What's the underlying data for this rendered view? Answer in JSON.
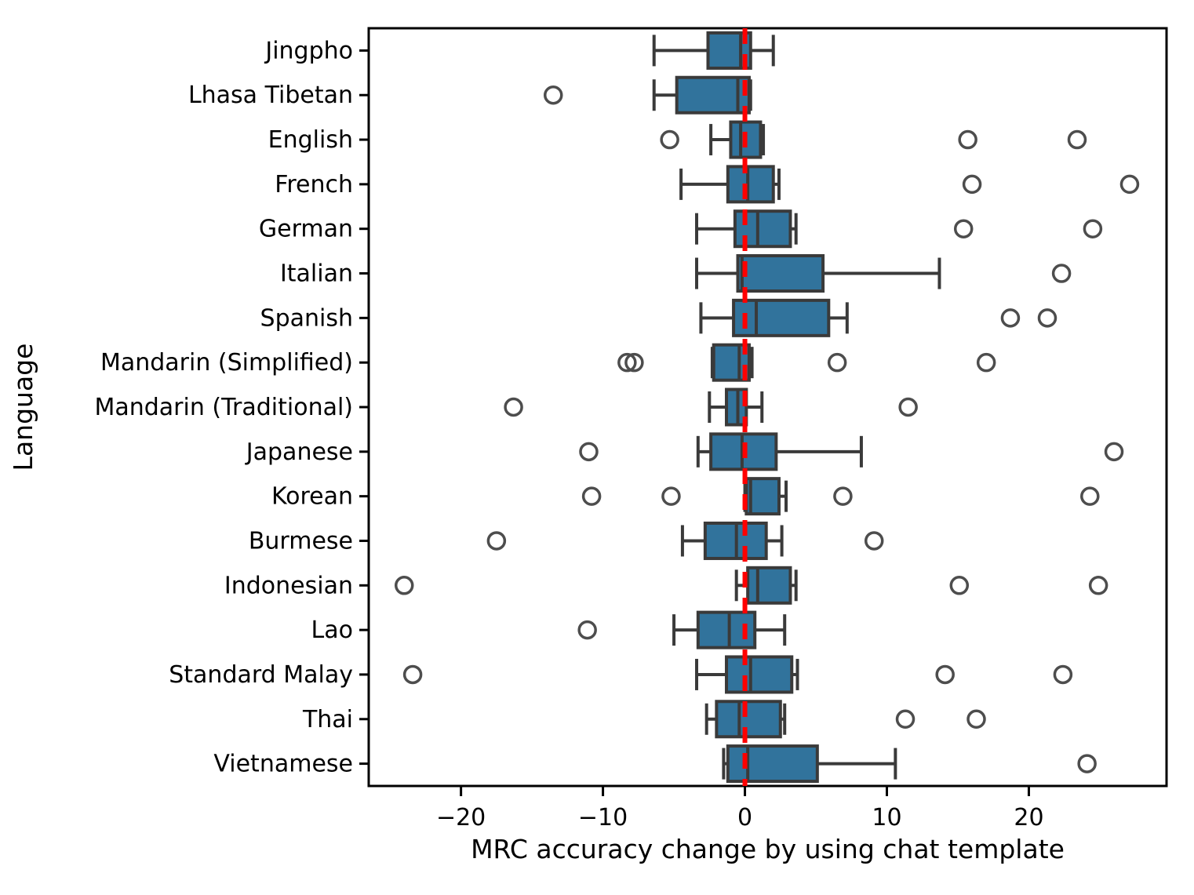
{
  "chart_data": {
    "type": "boxplot-horizontal",
    "title": "",
    "xlabel": "MRC accuracy change by using chat template",
    "ylabel": "Language",
    "xlim": [
      -26.5,
      29.7
    ],
    "x_ticks": [
      {
        "value": -20,
        "label": "−20"
      },
      {
        "value": -10,
        "label": "−10"
      },
      {
        "value": 0,
        "label": "0"
      },
      {
        "value": 10,
        "label": "10"
      },
      {
        "value": 20,
        "label": "20"
      }
    ],
    "zero_line_x": 0,
    "grid": false,
    "legend": null,
    "colors": {
      "box_fill": "#31739c",
      "box_edge": "#3a3a3a",
      "whisker": "#3a3a3a",
      "median": "#3a3a3a",
      "flier_edge": "#4d4d4d",
      "zero_line": "#ff0000",
      "spine": "#000000",
      "text": "#000000",
      "background": "#ffffff"
    },
    "series": [
      {
        "name": "Jingpho",
        "whislo": -6.4,
        "q1": -2.6,
        "med": -0.3,
        "q3": 0.4,
        "whishi": 2.0,
        "outliers": []
      },
      {
        "name": "Lhasa Tibetan",
        "whislo": -6.4,
        "q1": -4.8,
        "med": -0.5,
        "q3": 0.3,
        "whishi": 0.4,
        "outliers": [
          -13.5
        ]
      },
      {
        "name": "English",
        "whislo": -2.4,
        "q1": -1.0,
        "med": -0.3,
        "q3": 1.1,
        "whishi": 1.3,
        "outliers": [
          -5.3,
          15.7,
          23.4
        ]
      },
      {
        "name": "French",
        "whislo": -4.5,
        "q1": -1.2,
        "med": 0.2,
        "q3": 2.0,
        "whishi": 2.4,
        "outliers": [
          16.0,
          27.1
        ]
      },
      {
        "name": "German",
        "whislo": -3.4,
        "q1": -0.7,
        "med": 0.9,
        "q3": 3.2,
        "whishi": 3.6,
        "outliers": [
          15.4,
          24.5
        ]
      },
      {
        "name": "Italian",
        "whislo": -3.4,
        "q1": -0.5,
        "med": -0.2,
        "q3": 5.5,
        "whishi": 13.7,
        "outliers": [
          22.3
        ]
      },
      {
        "name": "Spanish",
        "whislo": -3.1,
        "q1": -0.8,
        "med": 0.8,
        "q3": 5.9,
        "whishi": 7.2,
        "outliers": [
          18.7,
          21.3
        ]
      },
      {
        "name": "Mandarin (Simplified)",
        "whislo": -2.3,
        "q1": -2.2,
        "med": -0.4,
        "q3": 0.3,
        "whishi": 0.5,
        "outliers": [
          -8.3,
          -7.8,
          6.5,
          17.0
        ]
      },
      {
        "name": "Mandarin (Traditional)",
        "whislo": -2.5,
        "q1": -1.3,
        "med": -0.5,
        "q3": 0.1,
        "whishi": 1.2,
        "outliers": [
          -16.3,
          11.5
        ]
      },
      {
        "name": "Japanese",
        "whislo": -3.3,
        "q1": -2.4,
        "med": -0.2,
        "q3": 2.2,
        "whishi": 8.2,
        "outliers": [
          -11.0,
          26.0
        ]
      },
      {
        "name": "Korean",
        "whislo": 0.0,
        "q1": 0.1,
        "med": 0.4,
        "q3": 2.4,
        "whishi": 2.9,
        "outliers": [
          -10.8,
          -5.2,
          6.9,
          24.3
        ]
      },
      {
        "name": "Burmese",
        "whislo": -4.4,
        "q1": -2.8,
        "med": -0.6,
        "q3": 1.5,
        "whishi": 2.6,
        "outliers": [
          -17.5,
          9.1
        ]
      },
      {
        "name": "Indonesian",
        "whislo": -0.6,
        "q1": 0.2,
        "med": 0.9,
        "q3": 3.2,
        "whishi": 3.6,
        "outliers": [
          -24.0,
          15.1,
          24.9
        ]
      },
      {
        "name": "Lao",
        "whislo": -5.0,
        "q1": -3.3,
        "med": -1.1,
        "q3": 0.7,
        "whishi": 2.8,
        "outliers": [
          -11.1
        ]
      },
      {
        "name": "Standard Malay",
        "whislo": -3.4,
        "q1": -1.3,
        "med": 0.4,
        "q3": 3.3,
        "whishi": 3.7,
        "outliers": [
          -23.4,
          14.1,
          22.4
        ]
      },
      {
        "name": "Thai",
        "whislo": -2.7,
        "q1": -2.0,
        "med": -0.4,
        "q3": 2.5,
        "whishi": 2.8,
        "outliers": [
          11.3,
          16.3
        ]
      },
      {
        "name": "Vietnamese",
        "whislo": -1.5,
        "q1": -1.2,
        "med": 0.2,
        "q3": 5.1,
        "whishi": 10.6,
        "outliers": [
          24.1
        ]
      }
    ]
  }
}
